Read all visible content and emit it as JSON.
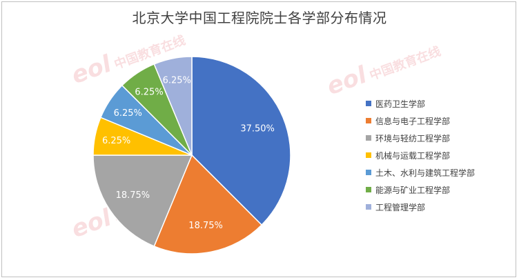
{
  "chart_data": {
    "type": "pie",
    "title": "北京大学中国工程院院士各学部分布情况",
    "categories": [
      "医药卫生学部",
      "信息与电子工程学部",
      "环境与轻纺工程学部",
      "机械与运载工程学部",
      "土木、水利与建筑工程学部",
      "能源与矿业工程学部",
      "工程管理学部"
    ],
    "values": [
      37.5,
      18.75,
      18.75,
      6.25,
      6.25,
      6.25,
      6.25
    ],
    "data_labels": [
      "37.50%",
      "18.75%",
      "18.75%",
      "6.25%",
      "6.25%",
      "6.25%",
      "6.25%"
    ],
    "colors": [
      "#4472c4",
      "#ed7d31",
      "#a5a5a5",
      "#ffc000",
      "#5b9bd5",
      "#70ad47",
      "#9fb0db"
    ],
    "legend_position": "right"
  },
  "watermark": {
    "logo": "eol",
    "text": "中国教育在线",
    "url": "www.eol.cn"
  }
}
